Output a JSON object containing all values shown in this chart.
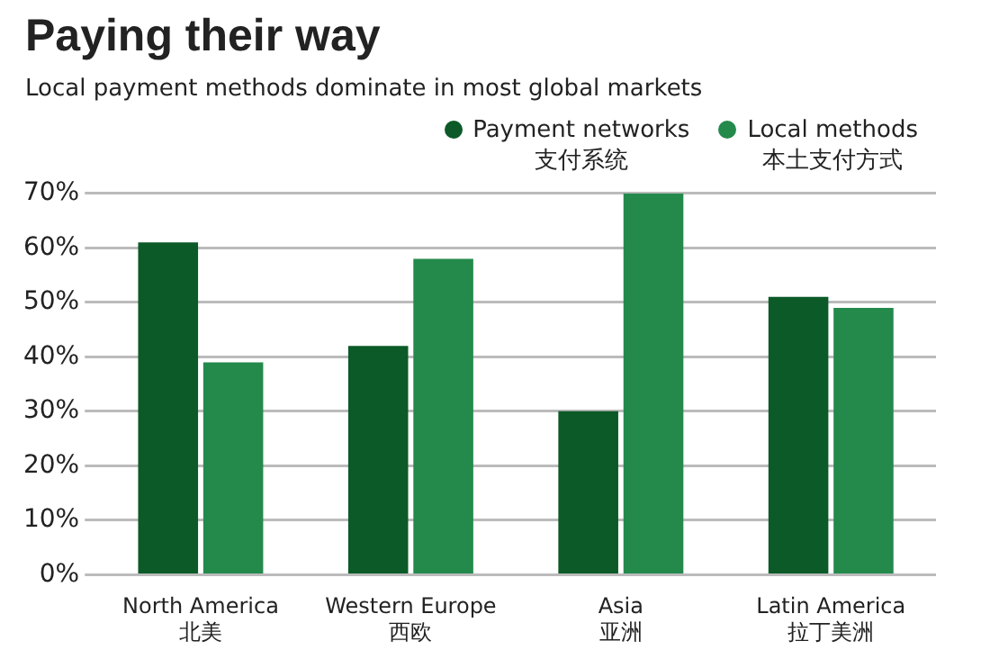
{
  "chart_data": {
    "type": "bar",
    "title": "Paying their way",
    "subtitle": "Local payment methods dominate in most global markets",
    "categories": [
      "North America\n北美",
      "Western Europe\n西欧",
      "Asia\n亚洲",
      "Latin America\n拉丁美洲"
    ],
    "series": [
      {
        "name": "Payment networks\n支付系统",
        "color": "#0b5a27",
        "values": [
          61,
          42,
          30,
          51
        ]
      },
      {
        "name": "Local methods\n本土支付方式",
        "color": "#238a4c",
        "values": [
          39,
          58,
          70,
          49
        ]
      }
    ],
    "ylim": [
      0,
      70
    ],
    "yticks": [
      {
        "value": 0,
        "label": "0%"
      },
      {
        "value": 10,
        "label": "10%"
      },
      {
        "value": 20,
        "label": "20%"
      },
      {
        "value": 30,
        "label": "30%"
      },
      {
        "value": 40,
        "label": "40%"
      },
      {
        "value": 50,
        "label": "50%"
      },
      {
        "value": 60,
        "label": "60%"
      },
      {
        "value": 70,
        "label": "70%"
      }
    ],
    "grid": "y",
    "legend": "top right"
  }
}
